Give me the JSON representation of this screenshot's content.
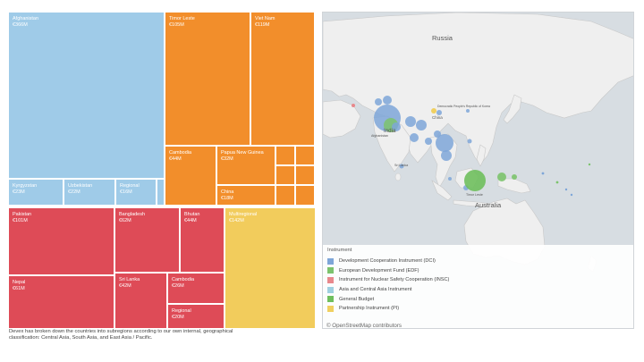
{
  "treemap": {
    "tiles": [
      {
        "id": "afghanistan",
        "name": "Afghanistan",
        "value": "€366M",
        "color": "#9fcbe8"
      },
      {
        "id": "kyrgyzstan",
        "name": "Kyrgyzstan",
        "value": "€23M",
        "color": "#9fcbe8"
      },
      {
        "id": "uzbekistan",
        "name": "Uzbekistan",
        "value": "€22M",
        "color": "#9fcbe8"
      },
      {
        "id": "regional-asia",
        "name": "Regional",
        "value": "€16M",
        "color": "#9fcbe8"
      },
      {
        "id": "timor-leste",
        "name": "Timor Leste",
        "value": "€105M",
        "color": "#f28e2b"
      },
      {
        "id": "viet-nam",
        "name": "Viet Nam",
        "value": "€119M",
        "color": "#f28e2b"
      },
      {
        "id": "cambodia",
        "name": "Cambodia",
        "value": "€44M",
        "color": "#f28e2b"
      },
      {
        "id": "papua-new-guinea",
        "name": "Papua New Guinea",
        "value": "€32M",
        "color": "#f28e2b"
      },
      {
        "id": "china",
        "name": "China",
        "value": "€18M",
        "color": "#f28e2b"
      },
      {
        "id": "pakistan",
        "name": "Pakistan",
        "value": "€101M",
        "color": "#de4b57"
      },
      {
        "id": "bangladesh",
        "name": "Bangladesh",
        "value": "€62M",
        "color": "#de4b57"
      },
      {
        "id": "bhutan",
        "name": "Bhutan",
        "value": "€44M",
        "color": "#de4b57"
      },
      {
        "id": "nepal",
        "name": "Nepal",
        "value": "€61M",
        "color": "#de4b57"
      },
      {
        "id": "sri-lanka",
        "name": "Sri Lanka",
        "value": "€42M",
        "color": "#de4b57"
      },
      {
        "id": "cambodia-red",
        "name": "Cambodia",
        "value": "€26M",
        "color": "#de4b57"
      },
      {
        "id": "regional-red",
        "name": "Regional",
        "value": "€20M",
        "color": "#de4b57"
      },
      {
        "id": "multiregional",
        "name": "Multiregional",
        "value": "€142M",
        "color": "#f2cc5c"
      }
    ]
  },
  "caption": "Devex has broken down the countries into subregions according to our own internal, geographical classification: Central Asia, South Asia, and East Asia / Pacific.",
  "map": {
    "labels": {
      "russia": "Russia",
      "india": "India",
      "australia": "Australia",
      "china": "China",
      "afghanistan": "Afghanistan",
      "sri_lanka": "Sri Lanka",
      "timor_leste": "Timor Leste",
      "dprk": "Democratic People's Republic of Korea"
    },
    "legend": {
      "title": "Instrument",
      "items": [
        {
          "label": "Development Cooperation Instrument (DCI)",
          "color": "#7ea6d8"
        },
        {
          "label": "European Development Fund (EDF)",
          "color": "#7cc36d"
        },
        {
          "label": "Instrument for Nuclear Safety Cooperation (INSC)",
          "color": "#e8888c"
        },
        {
          "label": "Asia and Central Asia Instrument",
          "color": "#9fd0e0"
        },
        {
          "label": "General Budget",
          "color": "#6fbf5d"
        },
        {
          "label": "Partnership Instrument (PI)",
          "color": "#f0d060"
        }
      ]
    },
    "attribution": "© OpenStreetMap contributors"
  }
}
